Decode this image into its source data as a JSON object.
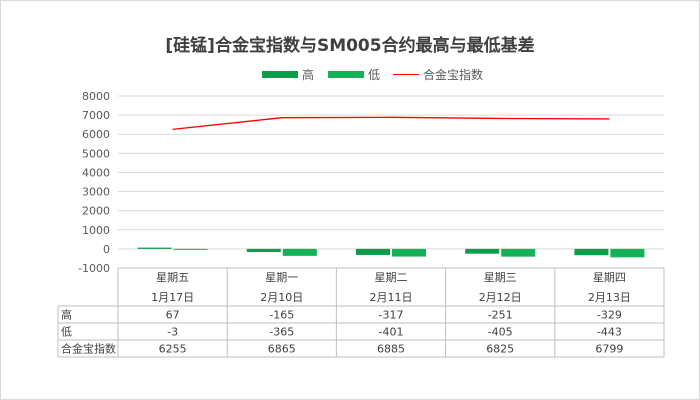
{
  "chart_data": {
    "type": "bar+line",
    "title": "[硅锰]合金宝指数与SM005合约最高与最低基差",
    "categories": [
      {
        "weekday": "星期五",
        "date": "1月17日"
      },
      {
        "weekday": "星期一",
        "date": "2月10日"
      },
      {
        "weekday": "星期二",
        "date": "2月11日"
      },
      {
        "weekday": "星期三",
        "date": "2月12日"
      },
      {
        "weekday": "星期四",
        "date": "2月13日"
      }
    ],
    "series": [
      {
        "name": "高",
        "kind": "bar",
        "color": "#0c9c4a",
        "values": [
          67,
          -165,
          -317,
          -251,
          -329
        ]
      },
      {
        "name": "低",
        "kind": "bar",
        "color": "#15b157",
        "values": [
          -3,
          -365,
          -401,
          -405,
          -443
        ]
      },
      {
        "name": "合金宝指数",
        "kind": "line",
        "color": "#ff0000",
        "values": [
          6255,
          6865,
          6885,
          6825,
          6799
        ]
      }
    ],
    "ylim": [
      -1000,
      8000
    ],
    "yticks": [
      8000,
      7000,
      6000,
      5000,
      4000,
      3000,
      2000,
      1000,
      0,
      -1000
    ],
    "grid": true,
    "legend_position": "top"
  }
}
